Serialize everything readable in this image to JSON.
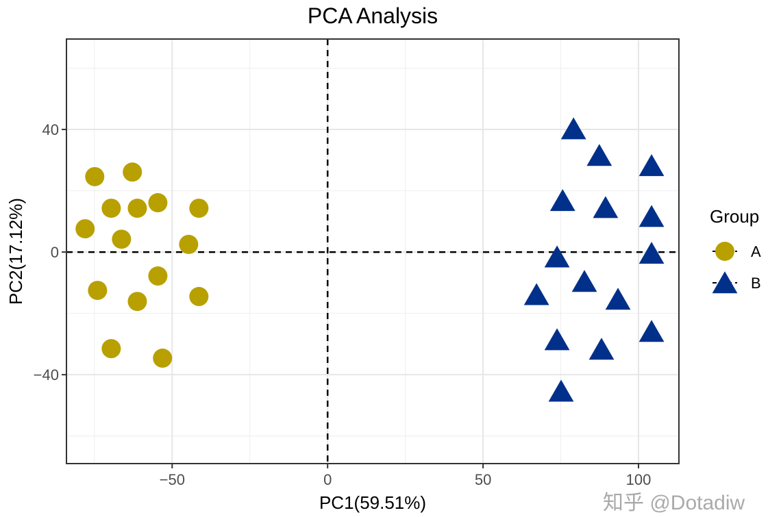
{
  "chart_data": {
    "type": "scatter",
    "title": "PCA Analysis",
    "xlabel": "PC1(59.51%)",
    "ylabel": "PC2(17.12%)",
    "xlim": [
      -84,
      113
    ],
    "ylim": [
      -69,
      69.5
    ],
    "xticks": [
      -50,
      0,
      50,
      100
    ],
    "xtick_labels": [
      "−50",
      "0",
      "50",
      "100"
    ],
    "yticks": [
      -40,
      0,
      40
    ],
    "ytick_labels": [
      "−40",
      "0",
      "40"
    ],
    "grid": true,
    "reference_lines": {
      "x": 0,
      "y": 0,
      "style": "dashed"
    },
    "legend": {
      "title": "Group",
      "placement": "right"
    },
    "series": [
      {
        "name": "A",
        "marker": "circle",
        "color": "#B8A000",
        "points": [
          [
            -74.9,
            24.6
          ],
          [
            -62.8,
            26.1
          ],
          [
            -69.6,
            14.3
          ],
          [
            -61.2,
            14.3
          ],
          [
            -54.6,
            16.1
          ],
          [
            -41.4,
            14.3
          ],
          [
            -78.0,
            7.6
          ],
          [
            -66.3,
            4.2
          ],
          [
            -44.7,
            2.5
          ],
          [
            -54.6,
            -7.8
          ],
          [
            -74.0,
            -12.5
          ],
          [
            -61.2,
            -16.1
          ],
          [
            -41.4,
            -14.5
          ],
          [
            -69.6,
            -31.5
          ],
          [
            -53.1,
            -34.6
          ]
        ]
      },
      {
        "name": "B",
        "marker": "triangle",
        "color": "#00308A",
        "points": [
          [
            79.1,
            40.2
          ],
          [
            87.4,
            31.5
          ],
          [
            104.2,
            28.2
          ],
          [
            75.6,
            16.8
          ],
          [
            89.4,
            14.5
          ],
          [
            104.2,
            11.6
          ],
          [
            73.8,
            -1.6
          ],
          [
            104.2,
            -0.4
          ],
          [
            82.6,
            -9.6
          ],
          [
            67.2,
            -13.9
          ],
          [
            93.4,
            -15.4
          ],
          [
            104.2,
            -25.9
          ],
          [
            73.8,
            -28.6
          ],
          [
            88.1,
            -31.7
          ],
          [
            75.1,
            -45.4
          ]
        ]
      }
    ]
  },
  "watermark": "知乎 @Dotadiw"
}
